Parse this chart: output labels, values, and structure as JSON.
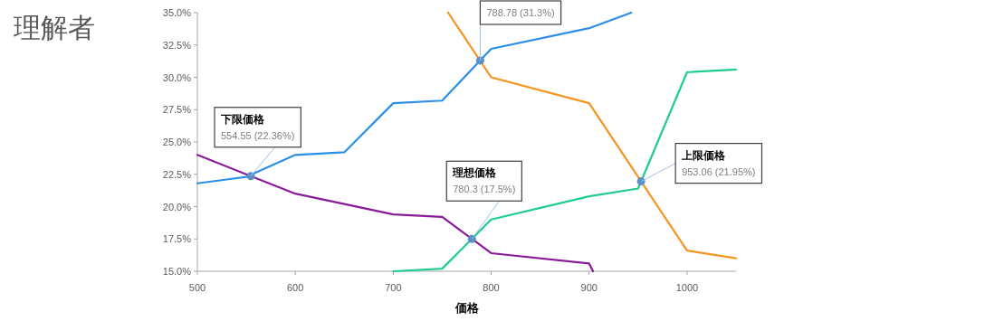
{
  "chart_data": {
    "type": "line",
    "title": "理解者",
    "xlabel": "価格",
    "xlim": [
      500,
      1050
    ],
    "ylim": [
      15,
      35
    ],
    "xticks": [
      500,
      600,
      700,
      800,
      900,
      1000
    ],
    "yticks": [
      {
        "value": 15,
        "label": "15.0%"
      },
      {
        "value": 17.5,
        "label": "17.5%"
      },
      {
        "value": 20,
        "label": "20.0%"
      },
      {
        "value": 22.5,
        "label": "22.5%"
      },
      {
        "value": 25,
        "label": "25.0%"
      },
      {
        "value": 27.5,
        "label": "27.5%"
      },
      {
        "value": 30,
        "label": "30.0%"
      },
      {
        "value": 32.5,
        "label": "32.5%"
      },
      {
        "value": 35,
        "label": "35.0%"
      }
    ],
    "grid": false,
    "series": [
      {
        "color": "#2b8fe8",
        "x": [
          500,
          550,
          600,
          650,
          700,
          750,
          800,
          900,
          943
        ],
        "values": [
          21.8,
          22.3,
          24.0,
          24.2,
          28.0,
          28.2,
          32.2,
          33.8,
          35.0
        ]
      },
      {
        "color": "#f7941d",
        "x": [
          756,
          800,
          900,
          1000,
          1050
        ],
        "values": [
          35.0,
          30.0,
          28.0,
          16.6,
          16.0
        ]
      },
      {
        "color": "#1fcc8f",
        "x": [
          700,
          750,
          800,
          900,
          950,
          1000,
          1050
        ],
        "values": [
          15.0,
          15.2,
          19.0,
          20.8,
          21.4,
          30.4,
          30.6
        ]
      },
      {
        "color": "#8b1a9a",
        "x": [
          500,
          600,
          700,
          750,
          800,
          900,
          904
        ],
        "values": [
          24.0,
          21.0,
          19.4,
          19.2,
          16.4,
          15.6,
          15.0
        ]
      },
      {
        "type": "scatter",
        "marker": "circle",
        "color": "#5b8fc7",
        "x": [
          554.55,
          780.3,
          788.78,
          953.06
        ],
        "values": [
          22.36,
          17.5,
          31.3,
          21.95
        ]
      }
    ],
    "annotations": [
      {
        "text": "下限価格\n554.55 (22.36%)",
        "x": 554.55,
        "y": 22.36
      },
      {
        "text": "理想価格\n780.3 (17.5%)",
        "x": 780.3,
        "y": 17.5
      },
      {
        "text": "788.78 (31.3%)",
        "x": 788.78,
        "y": 31.3
      },
      {
        "text": "上限価格\n953.06 (21.95%)",
        "x": 953.06,
        "y": 21.95
      }
    ]
  }
}
